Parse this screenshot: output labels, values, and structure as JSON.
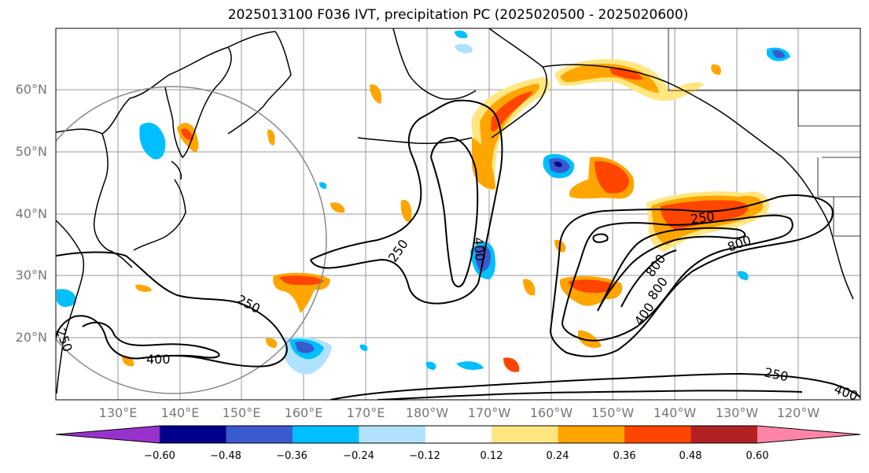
{
  "title": "2025013100 F036 IVT, precipitation PC (2025020500 - 2025020600)",
  "lat_labels": [
    "60°N",
    "50°N",
    "40°N",
    "30°N",
    "20°N"
  ],
  "lon_labels": [
    "130°E",
    "140°E",
    "150°E",
    "160°E",
    "170°E",
    "180°W",
    "170°W",
    "160°W",
    "150°W",
    "140°W",
    "130°W",
    "120°W"
  ],
  "ivt_contour_labels": [
    "250",
    "250",
    "250",
    "250",
    "400",
    "400",
    "400",
    "400",
    "800",
    "800",
    "800",
    "250"
  ],
  "colorbar": {
    "ticks": [
      "−0.60",
      "−0.48",
      "−0.36",
      "−0.24",
      "−0.12",
      "0.12",
      "0.24",
      "0.36",
      "0.48",
      "0.60"
    ],
    "colors": [
      "#9932cc",
      "#00008b",
      "#3a5acd",
      "#00bfff",
      "#b0e2ff",
      "#ffffff",
      "#ffe680",
      "#ffa500",
      "#ff4500",
      "#b22222",
      "#ff85a8"
    ]
  },
  "shading_colors": {
    "pos_low": "#ffe680",
    "pos_mid": "#ffa500",
    "pos_high": "#ff4500",
    "neg_low": "#b0e2ff",
    "neg_mid": "#00bfff",
    "neg_high": "#3a5acd",
    "neg_max": "#00008b"
  }
}
